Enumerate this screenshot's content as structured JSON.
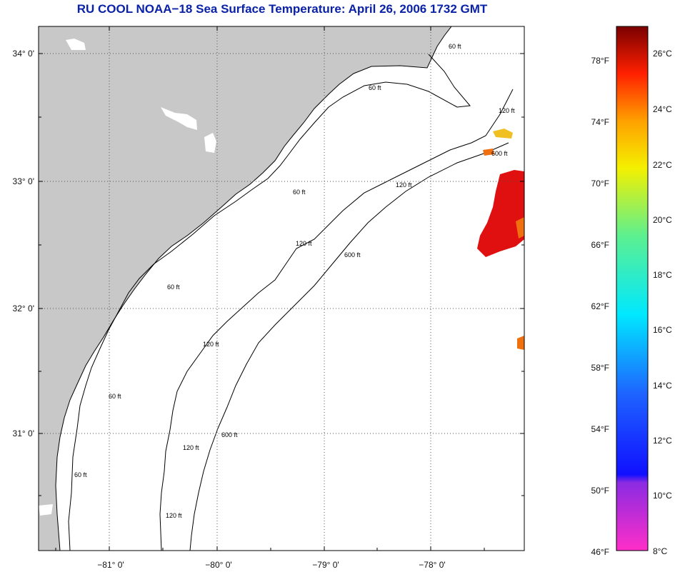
{
  "title": "RU COOL  NOAA−18  Sea Surface Temperature:  April 26, 2006 1732 GMT",
  "colors": {
    "land": "#c8c8c8",
    "ocean": "#ffffff",
    "title": "#0a21a8",
    "sst_warm": "#e01010",
    "sst_mid": "#f07010",
    "sst_yellow": "#f0c020"
  },
  "map": {
    "lat_labels": [
      "34° 0'",
      "33° 0'",
      "32° 0'",
      "31° 0'"
    ],
    "lon_labels": [
      "−81° 0'",
      "−80° 0'",
      "−79° 0'",
      "−78° 0'"
    ],
    "contour_labels": [
      "60 ft",
      "60 ft",
      "60 ft",
      "60 ft",
      "60 ft",
      "60 ft",
      "120 ft",
      "120 ft",
      "120 ft",
      "120 ft",
      "120 ft",
      "120 ft",
      "600 ft",
      "600 ft",
      "600 ft"
    ]
  },
  "colorbar": {
    "fahrenheit_labels": [
      "78°F",
      "74°F",
      "70°F",
      "66°F",
      "62°F",
      "58°F",
      "54°F",
      "50°F",
      "46°F"
    ],
    "celsius_labels": [
      "26°C",
      "24°C",
      "22°C",
      "20°C",
      "18°C",
      "16°C",
      "14°C",
      "12°C",
      "10°C",
      "8°C"
    ]
  }
}
